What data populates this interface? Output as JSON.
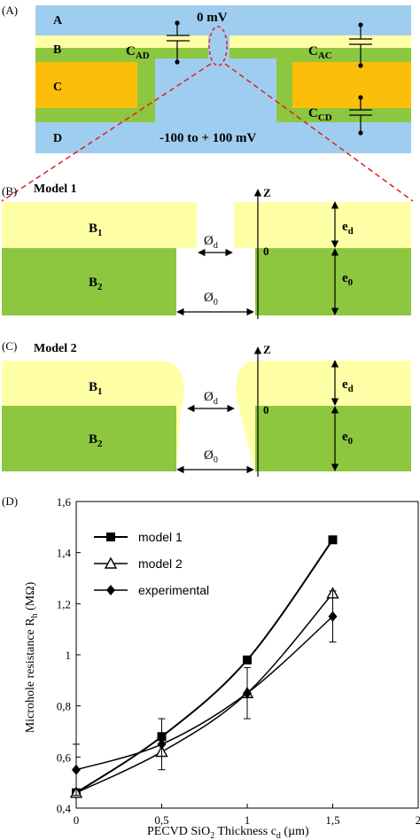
{
  "colors": {
    "electrolyte": "#9fcdf0",
    "layer_b1": "#ffffa8",
    "layer_b2": "#8dc63f",
    "layer_c": "#fbbf0a",
    "dash": "#e02020"
  },
  "panel_a": {
    "tag": "(A)",
    "region_a": "A",
    "region_b": "B",
    "region_c": "C",
    "region_d": "D",
    "top_voltage": "0 mV",
    "bottom_voltage": "-100 to + 100 mV",
    "cap_ad": {
      "main": "C",
      "sub": "AD"
    },
    "cap_ac": {
      "main": "C",
      "sub": "AC"
    },
    "cap_cd": {
      "main": "C",
      "sub": "CD"
    }
  },
  "panel_b": {
    "tag": "(B)",
    "model": "Model 1",
    "b1": {
      "main": "B",
      "sub": "1"
    },
    "b2": {
      "main": "B",
      "sub": "2"
    },
    "diam_d": {
      "main": "Ø",
      "sub": "d"
    },
    "diam_0": {
      "main": "Ø",
      "sub": "0"
    },
    "axis_z": "Z",
    "zero": "0",
    "e_d": {
      "main": "e",
      "sub": "d"
    },
    "e_0": {
      "main": "e",
      "sub": "0"
    }
  },
  "panel_c": {
    "tag": "(C)",
    "model": "Model 2",
    "b1": {
      "main": "B",
      "sub": "1"
    },
    "b2": {
      "main": "B",
      "sub": "2"
    },
    "diam_d": {
      "main": "Ø",
      "sub": "d"
    },
    "diam_0": {
      "main": "Ø",
      "sub": "0"
    },
    "axis_z": "Z",
    "zero": "0",
    "e_d": {
      "main": "e",
      "sub": "d"
    },
    "e_0": {
      "main": "e",
      "sub": "0"
    }
  },
  "panel_d": {
    "tag": "(D)",
    "chart_data": {
      "type": "line",
      "x_ticks": [
        "0",
        "0,5",
        "1",
        "1,5",
        "2"
      ],
      "y_ticks": [
        "0,4",
        "0,6",
        "0,8",
        "1",
        "1,2",
        "1,4",
        "1,6"
      ],
      "xlim": [
        0,
        2
      ],
      "ylim": [
        0.4,
        1.6
      ],
      "ylabel": {
        "main": "Microhole resistance R",
        "sub": "h",
        "tail": " (MΩ)"
      },
      "xlabel": {
        "main": "PECVD SiO",
        "sub": "2",
        "mid": " Thickness c",
        "sub2": "d",
        "tail": " (µm)"
      },
      "series": [
        {
          "name": "model 1",
          "marker": "square",
          "x": [
            0,
            0.5,
            1,
            1.5
          ],
          "values": [
            0.46,
            0.68,
            0.98,
            1.45
          ]
        },
        {
          "name": "model 2",
          "marker": "triangle",
          "x": [
            0,
            0.5,
            1,
            1.5
          ],
          "values": [
            0.46,
            0.62,
            0.85,
            1.24
          ]
        },
        {
          "name": "experimental",
          "marker": "diamond",
          "x": [
            0,
            0.5,
            1,
            1.5
          ],
          "values": [
            0.55,
            0.65,
            0.85,
            1.15
          ],
          "error": [
            0.1,
            0.1,
            0.1,
            0.1
          ]
        }
      ],
      "legend_position": "top-left"
    }
  }
}
